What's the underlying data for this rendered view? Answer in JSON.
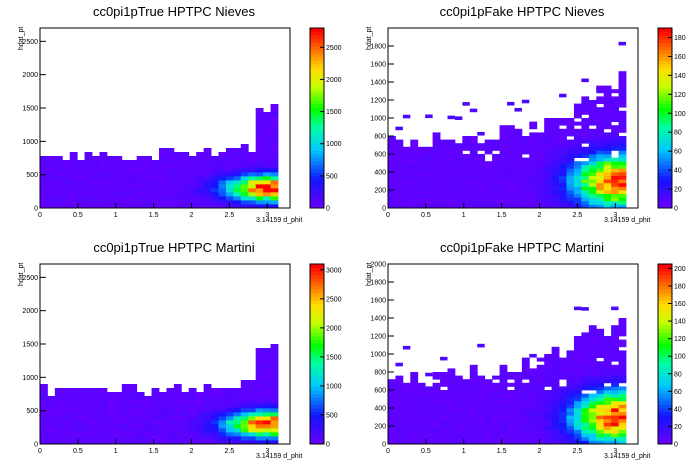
{
  "chart_data": [
    {
      "type": "heatmap",
      "title": "cc0pi1pTrue HPTPC Nieves",
      "xlabel": "3.14159 d_phit",
      "ylabel": "hdat_pt",
      "xlim": [
        0,
        3.3
      ],
      "ylim": [
        0,
        2700
      ],
      "xticks": [
        "0",
        "0.5",
        "1",
        "1.5",
        "2",
        "2.5",
        "3"
      ],
      "yticks": [
        "0",
        "500",
        "1000",
        "1500",
        "2000",
        "2500"
      ],
      "zticks": [
        "0",
        "500",
        "1000",
        "1500",
        "2000",
        "2500"
      ],
      "zmax": 2800,
      "shape": "true",
      "grid": false
    },
    {
      "type": "heatmap",
      "title": "cc0pi1pFake HPTPC Nieves",
      "xlabel": "3.14159 d_phit",
      "ylabel": "hdat_pt",
      "xlim": [
        0,
        3.3
      ],
      "ylim": [
        0,
        2000
      ],
      "xticks": [
        "0",
        "0.5",
        "1",
        "1.5",
        "2",
        "2.5",
        "3"
      ],
      "yticks": [
        "0",
        "200",
        "400",
        "600",
        "800",
        "1000",
        "1200",
        "1400",
        "1600",
        "1800"
      ],
      "zticks": [
        "0",
        "20",
        "40",
        "60",
        "80",
        "100",
        "120",
        "140",
        "160",
        "180"
      ],
      "zmax": 190,
      "shape": "fake",
      "grid": false
    },
    {
      "type": "heatmap",
      "title": "cc0pi1pTrue HPTPC Martini",
      "xlabel": "3.14159 d_phit",
      "ylabel": "hdat_pt",
      "xlim": [
        0,
        3.3
      ],
      "ylim": [
        0,
        2700
      ],
      "xticks": [
        "0",
        "0.5",
        "1",
        "1.5",
        "2",
        "2.5",
        "3"
      ],
      "yticks": [
        "0",
        "500",
        "1000",
        "1500",
        "2000",
        "2500"
      ],
      "zticks": [
        "0",
        "500",
        "1000",
        "1500",
        "2000",
        "2500",
        "3000"
      ],
      "zmax": 3100,
      "shape": "true",
      "grid": false
    },
    {
      "type": "heatmap",
      "title": "cc0pi1pFake HPTPC Martini",
      "xlabel": "3.14159 d_phit",
      "ylabel": "hdat_pt",
      "xlim": [
        0,
        3.3
      ],
      "ylim": [
        0,
        2000
      ],
      "xticks": [
        "0",
        "0.5",
        "1",
        "1.5",
        "2",
        "2.5",
        "3"
      ],
      "yticks": [
        "0",
        "200",
        "400",
        "600",
        "800",
        "1000",
        "1200",
        "1400",
        "1600",
        "1800",
        "2000"
      ],
      "zticks": [
        "0",
        "20",
        "40",
        "60",
        "80",
        "100",
        "120",
        "140",
        "160",
        "180",
        "200"
      ],
      "zmax": 205,
      "shape": "fake",
      "grid": false
    }
  ]
}
